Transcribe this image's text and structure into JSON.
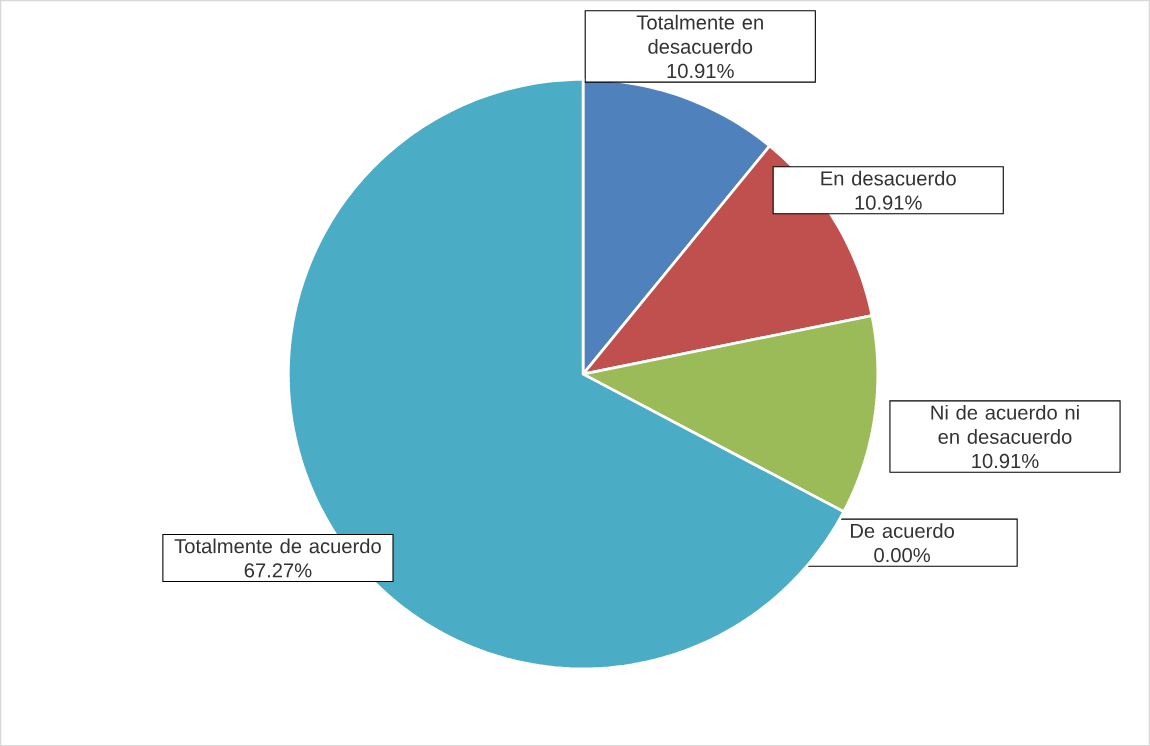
{
  "chart_data": {
    "type": "pie",
    "categories": [
      "Totalmente en desacuerdo",
      "En desacuerdo",
      "Ni de acuerdo ni en desacuerdo",
      "De acuerdo",
      "Totalmente de acuerdo"
    ],
    "values": [
      10.91,
      10.91,
      10.91,
      0.0,
      67.27
    ],
    "colors": [
      "#4f81bd",
      "#c0504d",
      "#9bbb59",
      "#8064a2",
      "#4bacc6"
    ],
    "value_labels": [
      "10.91%",
      "10.91%",
      "10.91%",
      "0.00%",
      "67.27%"
    ]
  }
}
